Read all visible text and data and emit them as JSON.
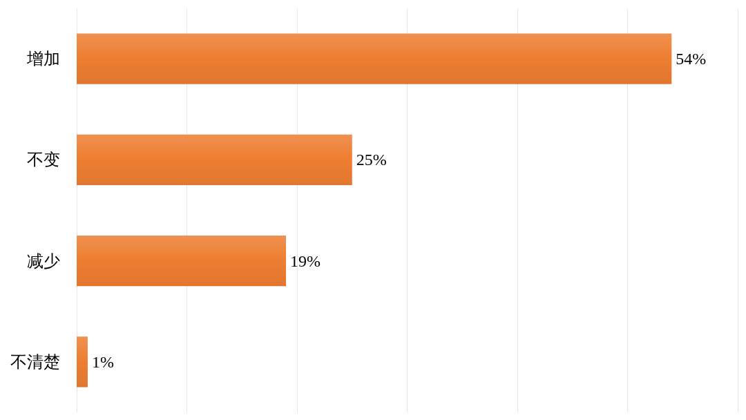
{
  "chart_data": {
    "type": "bar",
    "orientation": "horizontal",
    "categories": [
      "增加",
      "不变",
      "减少",
      "不清楚"
    ],
    "values": [
      54,
      25,
      19,
      1
    ],
    "value_labels": [
      "54%",
      "25%",
      "19%",
      "1%"
    ],
    "color": "#ed7d31",
    "xlim": [
      0,
      60
    ],
    "xticks": [
      {
        "value": 0,
        "label": null
      },
      {
        "value": 10,
        "label": null
      },
      {
        "value": 20,
        "label": null
      },
      {
        "value": 30,
        "label": null
      },
      {
        "value": 40,
        "label": null
      },
      {
        "value": 50,
        "label": null
      },
      {
        "value": 60,
        "label": null
      }
    ],
    "grid": "x",
    "tick_labels": "y"
  }
}
